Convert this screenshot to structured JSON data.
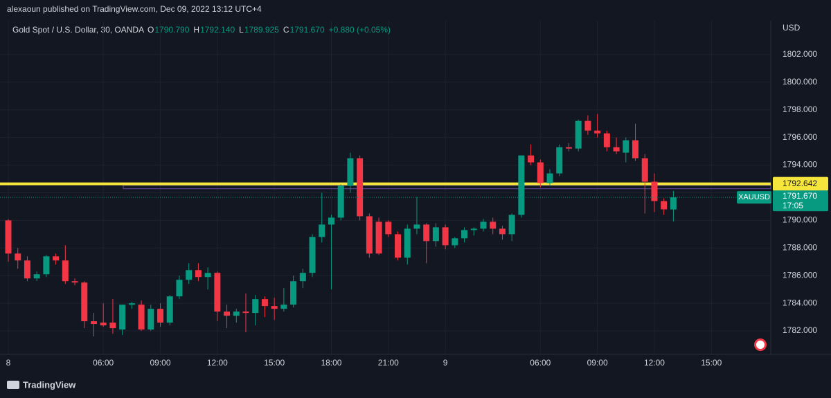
{
  "chart_data": {
    "type": "candlestick",
    "publisher": "alexaoun published on TradingView.com, Dec 09, 2022 13:12 UTC+4",
    "symbol": "Gold Spot / U.S. Dollar, 30, OANDA",
    "legend": [
      {
        "key": "O",
        "text": "1790.790"
      },
      {
        "key": "H",
        "text": "1792.140"
      },
      {
        "key": "L",
        "text": "1789.925"
      },
      {
        "key": "C",
        "text": "1791.670"
      }
    ],
    "change": "+0.880 (+0.05%)",
    "currency": "USD",
    "ticker": "XAUUSD",
    "last_price": {
      "value": 1791.67,
      "label": "1791.670"
    },
    "countdown": "17:05",
    "level": 1792.642,
    "footer": "TradingView",
    "up_color": "#089981",
    "down_color": "#f23645",
    "level_color": "#f5e53c",
    "categories": [
      "8",
      null,
      null,
      null,
      null,
      null,
      null,
      null,
      null,
      null,
      "06:00",
      null,
      null,
      null,
      null,
      null,
      "09:00",
      null,
      null,
      null,
      null,
      null,
      "12:00",
      null,
      null,
      null,
      null,
      null,
      "15:00",
      null,
      null,
      null,
      null,
      null,
      "18:00",
      null,
      null,
      null,
      null,
      null,
      "21:00",
      null,
      null,
      null,
      null,
      null,
      "9",
      null,
      null,
      null,
      null,
      null,
      null,
      null,
      null,
      null,
      "06:00",
      null,
      null,
      null,
      null,
      null,
      "09:00",
      null,
      null,
      null,
      null,
      null,
      "12:00",
      null,
      null,
      null,
      null,
      null,
      "15:00"
    ],
    "open": [
      1790.0,
      1787.6,
      1787.1,
      1785.8,
      1786.1,
      1787.4,
      1787.1,
      1785.6,
      1785.5,
      1782.7,
      1782.6,
      1782.6,
      1782.1,
      1783.9,
      1783.9,
      1782.1,
      1783.6,
      1782.6,
      1784.5,
      1785.7,
      1786.4,
      1785.9,
      1786.2,
      1783.4,
      1783.1,
      1783.4,
      1783.3,
      1784.3,
      1783.8,
      1783.6,
      1783.9,
      1785.6,
      1786.2,
      1788.8,
      1789.7,
      1790.2,
      1792.5,
      1794.5,
      1790.3,
      1789.9,
      1789.9,
      1789.0,
      1787.3,
      1789.4,
      1789.7,
      1788.5,
      1789.5,
      1788.2,
      1788.7,
      1789.3,
      1789.4,
      1789.9,
      1789.4,
      1789.0,
      1790.4,
      1794.7,
      1794.2,
      1792.7,
      1793.4,
      1795.3,
      1795.2,
      1797.2,
      1796.5,
      1796.3,
      1795.3,
      1794.9,
      1795.8,
      1794.5,
      1792.8,
      1791.4,
      1790.79,
      null,
      null,
      null,
      null
    ],
    "high": [
      1790.1,
      1788.0,
      1787.4,
      1786.3,
      1787.5,
      1787.6,
      1788.2,
      1785.8,
      1785.6,
      1783.3,
      1784.0,
      1784.3,
      1783.9,
      1784.1,
      1784.2,
      1783.9,
      1784.0,
      1784.6,
      1786.0,
      1786.9,
      1786.9,
      1786.6,
      1786.3,
      1783.9,
      1783.6,
      1784.7,
      1784.6,
      1784.5,
      1784.4,
      1785.1,
      1786.0,
      1786.5,
      1789.0,
      1792.0,
      1790.4,
      1792.6,
      1794.9,
      1794.7,
      1790.5,
      1790.2,
      1790.0,
      1789.2,
      1789.7,
      1791.7,
      1789.8,
      1789.8,
      1789.7,
      1788.8,
      1789.5,
      1789.5,
      1790.1,
      1790.2,
      1789.6,
      1790.5,
      1794.7,
      1795.5,
      1794.4,
      1793.7,
      1795.5,
      1795.6,
      1797.3,
      1797.6,
      1797.7,
      1796.5,
      1796.0,
      1796.0,
      1797.0,
      1794.8,
      1793.4,
      1791.6,
      1792.14,
      null,
      null,
      null,
      null
    ],
    "low": [
      1787.0,
      1786.5,
      1785.6,
      1785.6,
      1785.9,
      1786.8,
      1785.4,
      1785.3,
      1782.2,
      1781.6,
      1782.3,
      1781.8,
      1781.7,
      1783.6,
      1782.0,
      1782.0,
      1782.3,
      1782.4,
      1784.3,
      1785.4,
      1785.6,
      1785.0,
      1782.7,
      1782.2,
      1782.6,
      1781.9,
      1782.4,
      1783.0,
      1782.8,
      1783.4,
      1783.7,
      1785.1,
      1785.9,
      1788.4,
      1785.0,
      1790.0,
      1792.0,
      1790.0,
      1787.3,
      1787.5,
      1788.8,
      1787.1,
      1786.8,
      1789.0,
      1786.9,
      1788.1,
      1787.9,
      1788.0,
      1788.4,
      1788.9,
      1789.2,
      1789.0,
      1788.6,
      1788.5,
      1790.2,
      1794.0,
      1792.4,
      1792.5,
      1793.2,
      1795.0,
      1795.0,
      1796.2,
      1796.0,
      1795.0,
      1794.8,
      1794.2,
      1794.3,
      1790.5,
      1790.6,
      1790.4,
      1789.925,
      null,
      null,
      null,
      null
    ],
    "close": [
      1787.6,
      1787.1,
      1785.8,
      1786.1,
      1787.4,
      1787.1,
      1785.6,
      1785.5,
      1782.7,
      1782.5,
      1782.4,
      1782.2,
      1783.9,
      1784.0,
      1782.1,
      1783.6,
      1782.6,
      1784.5,
      1785.7,
      1786.4,
      1785.9,
      1786.2,
      1783.4,
      1783.1,
      1783.4,
      1783.3,
      1784.3,
      1783.8,
      1783.6,
      1783.9,
      1785.6,
      1786.2,
      1788.8,
      1789.7,
      1790.2,
      1792.5,
      1794.5,
      1790.3,
      1787.6,
      1787.6,
      1789.0,
      1787.3,
      1789.4,
      1789.7,
      1788.5,
      1789.5,
      1788.2,
      1788.7,
      1789.3,
      1789.4,
      1789.9,
      1789.4,
      1789.0,
      1790.4,
      1794.7,
      1794.2,
      1792.7,
      1793.4,
      1795.3,
      1795.2,
      1797.2,
      1796.5,
      1796.3,
      1795.3,
      1795.0,
      1795.8,
      1794.5,
      1792.8,
      1791.4,
      1790.8,
      1791.67,
      null,
      null,
      null,
      null
    ],
    "ylim": [
      1780.3,
      1804.45
    ],
    "yticks": [
      {
        "value": 1782,
        "label": "1782.000"
      },
      {
        "value": 1784,
        "label": "1784.000"
      },
      {
        "value": 1786,
        "label": "1786.000"
      },
      {
        "value": 1788,
        "label": "1788.000"
      },
      {
        "value": 1790,
        "label": "1790.000"
      },
      {
        "value": 1792,
        "label": "1792.000"
      },
      {
        "value": 1794,
        "label": "1794.000"
      },
      {
        "value": 1796,
        "label": "1796.000"
      },
      {
        "value": 1798,
        "label": "1798.000"
      },
      {
        "value": 1800,
        "label": "1800.000"
      },
      {
        "value": 1802,
        "label": "1802.000"
      }
    ],
    "grid": true
  }
}
